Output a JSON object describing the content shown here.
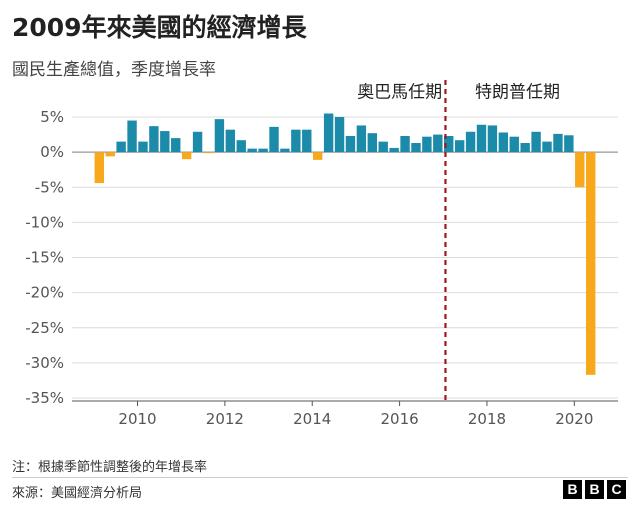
{
  "header": {
    "title": "2009年來美國的經濟增長",
    "subtitle": "國民生產總值，季度增長率"
  },
  "footer": {
    "note": "注：根據季節性調整後的年增長率",
    "source": "來源：美國經濟分析局",
    "logo_letters": [
      "B",
      "B",
      "C"
    ]
  },
  "colors": {
    "positive": "#1c8aa9",
    "negative": "#f7a81b",
    "divider_line": "#a3161b",
    "grid": "#dcdcdc",
    "axis_text": "#555555"
  },
  "chart_data": {
    "type": "bar",
    "x_start": 2009.0,
    "x_step": 0.25,
    "values": [
      -4.4,
      -0.6,
      1.5,
      4.5,
      1.5,
      3.7,
      3.0,
      2.0,
      -1.0,
      2.9,
      -0.1,
      4.7,
      3.2,
      1.7,
      0.5,
      0.5,
      3.6,
      0.5,
      3.2,
      3.2,
      -1.1,
      5.5,
      5.0,
      2.3,
      3.8,
      2.7,
      1.5,
      0.6,
      2.3,
      1.3,
      2.2,
      2.5,
      2.3,
      1.7,
      2.9,
      3.9,
      3.8,
      2.8,
      2.2,
      1.3,
      2.9,
      1.5,
      2.6,
      2.4,
      -5.0,
      -31.7
    ],
    "y_ticks": [
      5,
      0,
      -5,
      -10,
      -15,
      -20,
      -25,
      -30,
      -35
    ],
    "y_tick_labels": [
      "5%",
      "0%",
      "-5%",
      "-10%",
      "-15%",
      "-20%",
      "-25%",
      "-30%",
      "-35%"
    ],
    "x_ticks": [
      2010,
      2012,
      2014,
      2016,
      2018,
      2020
    ],
    "x_tick_labels": [
      "2010",
      "2012",
      "2014",
      "2016",
      "2018",
      "2020"
    ],
    "ylim": [
      -35,
      6
    ],
    "xlim": [
      2008.5,
      2021.0
    ],
    "grid": true,
    "annotations": [
      {
        "text": "奧巴馬任期",
        "x": 2016.0,
        "y": 7.5
      },
      {
        "text": "特朗普任期",
        "x": 2018.7,
        "y": 7.5
      }
    ],
    "divider_x": 2017.05
  }
}
